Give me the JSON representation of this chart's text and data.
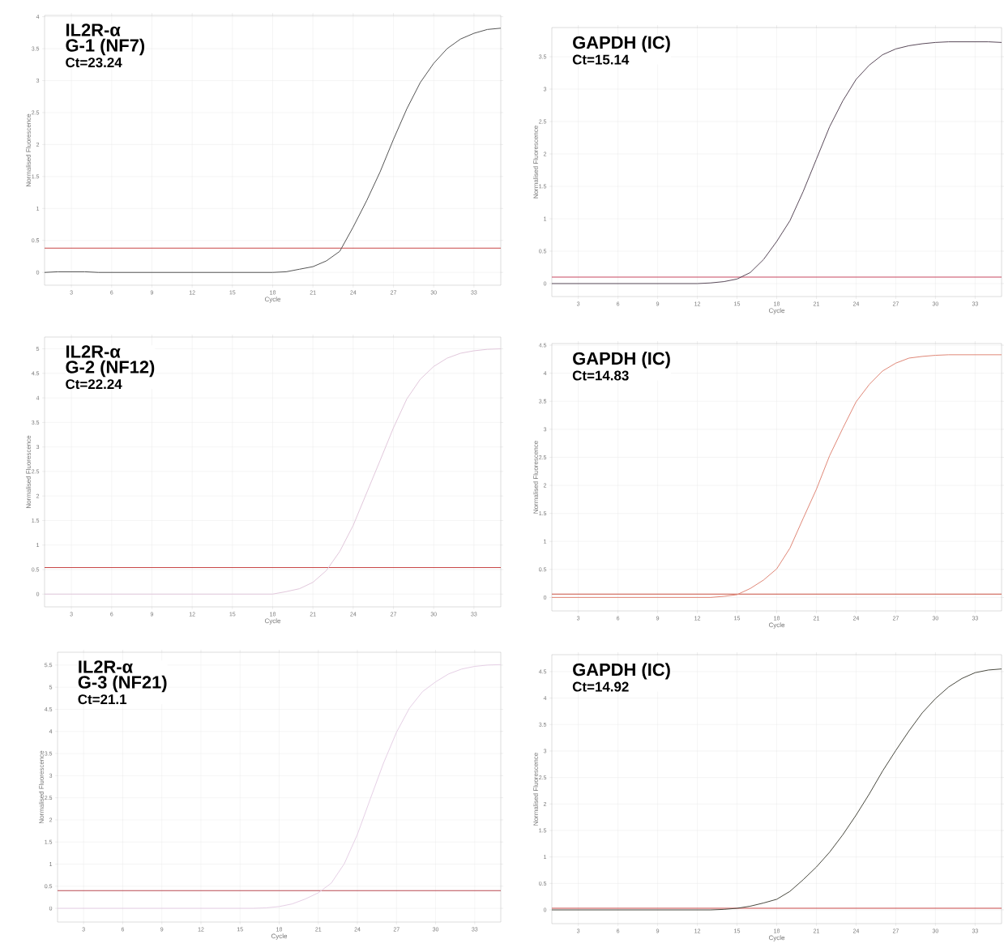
{
  "chart_data": [
    {
      "type": "line",
      "title": "IL2R-α",
      "subtitle": "G-1 (NF7)",
      "annotations": [
        "Ct=23.24"
      ],
      "xlabel": "Cycle",
      "ylabel": "Normalised Fluorescence",
      "grid": true,
      "xlim": [
        1,
        35
      ],
      "ylim": [
        -0.2,
        4.02
      ],
      "xticks": [
        3,
        6,
        9,
        12,
        15,
        18,
        21,
        24,
        27,
        30,
        33
      ],
      "yticks": [
        0,
        0.5,
        1,
        1.5,
        2,
        2.5,
        3,
        3.5,
        4
      ],
      "x": [
        1,
        2,
        3,
        4,
        5,
        6,
        7,
        8,
        9,
        10,
        11,
        12,
        13,
        14,
        15,
        16,
        17,
        18,
        19,
        20,
        21,
        22,
        23,
        24,
        25,
        26,
        27,
        28,
        29,
        30,
        31,
        32,
        33,
        34,
        35
      ],
      "series": [
        {
          "color": "#555555",
          "values": [
            0,
            0.01,
            0.01,
            0.01,
            0,
            0,
            0,
            0,
            0,
            0,
            0,
            0,
            0,
            0,
            0,
            0,
            0,
            0,
            0.01,
            0.05,
            0.09,
            0.18,
            0.33,
            0.71,
            1.12,
            1.57,
            2.08,
            2.56,
            2.97,
            3.27,
            3.5,
            3.65,
            3.74,
            3.8,
            3.82
          ]
        }
      ],
      "ref_lines": [
        {
          "axis": "y",
          "value": 0.38,
          "color": "#c84848"
        }
      ]
    },
    {
      "type": "line",
      "title": "GAPDH (IC)",
      "annotations": [
        "Ct=15.14"
      ],
      "xlabel": "Cycle",
      "ylabel": "Normalised Fluorescence",
      "grid": true,
      "xlim": [
        1,
        35
      ],
      "ylim": [
        -0.2,
        3.95
      ],
      "xticks": [
        3,
        6,
        9,
        12,
        15,
        18,
        21,
        24,
        27,
        30,
        33
      ],
      "yticks": [
        0,
        0.5,
        1,
        1.5,
        2,
        2.5,
        3,
        3.5
      ],
      "x": [
        1,
        2,
        3,
        4,
        5,
        6,
        7,
        8,
        9,
        10,
        11,
        12,
        13,
        14,
        15,
        16,
        17,
        18,
        19,
        20,
        21,
        22,
        23,
        24,
        25,
        26,
        27,
        28,
        29,
        30,
        31,
        32,
        33,
        34,
        35
      ],
      "series": [
        {
          "color": "#5a4a5a",
          "values": [
            0,
            0,
            0,
            0,
            0,
            0,
            0,
            0,
            0,
            0,
            0,
            0,
            0.01,
            0.03,
            0.07,
            0.17,
            0.37,
            0.65,
            0.97,
            1.42,
            1.92,
            2.42,
            2.82,
            3.15,
            3.37,
            3.53,
            3.62,
            3.67,
            3.7,
            3.72,
            3.73,
            3.73,
            3.73,
            3.73,
            3.72
          ]
        }
      ],
      "ref_lines": [
        {
          "axis": "y",
          "value": 0.1,
          "color": "#c84860"
        }
      ]
    },
    {
      "type": "line",
      "title": "IL2R-α",
      "subtitle": "G-2 (NF12)",
      "annotations": [
        "Ct=22.24"
      ],
      "xlabel": "Cycle",
      "ylabel": "Normalised Fluorescence",
      "grid": true,
      "xlim": [
        1,
        35
      ],
      "ylim": [
        -0.26,
        5.24
      ],
      "xticks": [
        3,
        6,
        9,
        12,
        15,
        18,
        21,
        24,
        27,
        30,
        33
      ],
      "yticks": [
        0,
        0.5,
        1,
        1.5,
        2,
        2.5,
        3,
        3.5,
        4,
        4.5,
        5
      ],
      "x": [
        1,
        2,
        3,
        4,
        5,
        6,
        7,
        8,
        9,
        10,
        11,
        12,
        13,
        14,
        15,
        16,
        17,
        18,
        19,
        20,
        21,
        22,
        23,
        24,
        25,
        26,
        27,
        28,
        29,
        30,
        31,
        32,
        33,
        34,
        35
      ],
      "series": [
        {
          "color": "#e2c8dc",
          "values": [
            0,
            0,
            0,
            0,
            0,
            0,
            0,
            0,
            0,
            0,
            0,
            0,
            0,
            0,
            0,
            0,
            0,
            0,
            0.05,
            0.11,
            0.24,
            0.48,
            0.87,
            1.4,
            2.06,
            2.72,
            3.39,
            3.98,
            4.38,
            4.64,
            4.81,
            4.91,
            4.96,
            4.99,
            5.0
          ]
        }
      ],
      "ref_lines": [
        {
          "axis": "y",
          "value": 0.54,
          "color": "#c84848"
        }
      ]
    },
    {
      "type": "line",
      "title": "GAPDH (IC)",
      "annotations": [
        "Ct=14.83"
      ],
      "xlabel": "Cycle",
      "ylabel": "Normalised Fluorescence",
      "grid": true,
      "xlim": [
        1,
        35
      ],
      "ylim": [
        -0.24,
        4.53
      ],
      "xticks": [
        3,
        6,
        9,
        12,
        15,
        18,
        21,
        24,
        27,
        30,
        33
      ],
      "yticks": [
        0,
        0.5,
        1,
        1.5,
        2,
        2.5,
        3,
        3.5,
        4,
        4.5
      ],
      "x": [
        1,
        2,
        3,
        4,
        5,
        6,
        7,
        8,
        9,
        10,
        11,
        12,
        13,
        14,
        15,
        16,
        17,
        18,
        19,
        20,
        21,
        22,
        23,
        24,
        25,
        26,
        27,
        28,
        29,
        30,
        31,
        32,
        33,
        34,
        35
      ],
      "series": [
        {
          "color": "#e08878",
          "values": [
            0,
            0,
            0,
            0,
            0,
            0,
            0,
            0,
            0,
            0,
            0,
            0,
            0,
            0.02,
            0.05,
            0.16,
            0.31,
            0.51,
            0.88,
            1.41,
            1.93,
            2.53,
            3.02,
            3.49,
            3.8,
            4.04,
            4.18,
            4.27,
            4.3,
            4.32,
            4.33,
            4.33,
            4.33,
            4.33,
            4.33
          ]
        }
      ],
      "ref_lines": [
        {
          "axis": "y",
          "value": 0.06,
          "color": "#c85040"
        }
      ]
    },
    {
      "type": "line",
      "title": "IL2R-α",
      "subtitle": "G-3 (NF21)",
      "annotations": [
        "Ct=21.1"
      ],
      "xlabel": "Cycle",
      "ylabel": "Normalised Fluorescence",
      "grid": true,
      "xlim": [
        1,
        35
      ],
      "ylim": [
        -0.31,
        5.79
      ],
      "xticks": [
        3,
        6,
        9,
        12,
        15,
        18,
        21,
        24,
        27,
        30,
        33
      ],
      "yticks": [
        0,
        0.5,
        1,
        1.5,
        2,
        2.5,
        3,
        3.5,
        4,
        4.5,
        5,
        5.5
      ],
      "x": [
        1,
        2,
        3,
        4,
        5,
        6,
        7,
        8,
        9,
        10,
        11,
        12,
        13,
        14,
        15,
        16,
        17,
        18,
        19,
        20,
        21,
        22,
        23,
        24,
        25,
        26,
        27,
        28,
        29,
        30,
        31,
        32,
        33,
        34,
        35
      ],
      "series": [
        {
          "color": "#e6d0e6",
          "values": [
            0,
            0,
            0,
            0,
            0,
            0,
            0,
            0,
            0,
            0,
            0,
            0,
            0,
            0,
            0,
            0,
            0.01,
            0.04,
            0.1,
            0.21,
            0.35,
            0.57,
            1.01,
            1.67,
            2.48,
            3.28,
            3.98,
            4.53,
            4.9,
            5.12,
            5.3,
            5.41,
            5.47,
            5.5,
            5.51
          ]
        }
      ],
      "ref_lines": [
        {
          "axis": "y",
          "value": 0.4,
          "color": "#b84850"
        }
      ]
    },
    {
      "type": "line",
      "title": "GAPDH (IC)",
      "annotations": [
        "Ct=14.92"
      ],
      "xlabel": "Cycle",
      "ylabel": "Normalised Fluorescence",
      "grid": true,
      "xlim": [
        1,
        35
      ],
      "ylim": [
        -0.26,
        4.82
      ],
      "xticks": [
        3,
        6,
        9,
        12,
        15,
        18,
        21,
        24,
        27,
        30,
        33
      ],
      "yticks": [
        0,
        0.5,
        1,
        1.5,
        2,
        2.5,
        3,
        3.5,
        4,
        4.5
      ],
      "x": [
        1,
        2,
        3,
        4,
        5,
        6,
        7,
        8,
        9,
        10,
        11,
        12,
        13,
        14,
        15,
        16,
        17,
        18,
        19,
        20,
        21,
        22,
        23,
        24,
        25,
        26,
        27,
        28,
        29,
        30,
        31,
        32,
        33,
        34,
        35
      ],
      "series": [
        {
          "color": "#4a4a40",
          "values": [
            0,
            0,
            0,
            0,
            0,
            0,
            0,
            0,
            0,
            0,
            0,
            0,
            0,
            0.01,
            0.03,
            0.07,
            0.13,
            0.2,
            0.35,
            0.57,
            0.81,
            1.09,
            1.42,
            1.79,
            2.19,
            2.62,
            3.01,
            3.38,
            3.72,
            3.99,
            4.21,
            4.37,
            4.48,
            4.53,
            4.55
          ]
        }
      ],
      "ref_lines": [
        {
          "axis": "y",
          "value": 0.03,
          "color": "#c84848"
        }
      ]
    }
  ]
}
